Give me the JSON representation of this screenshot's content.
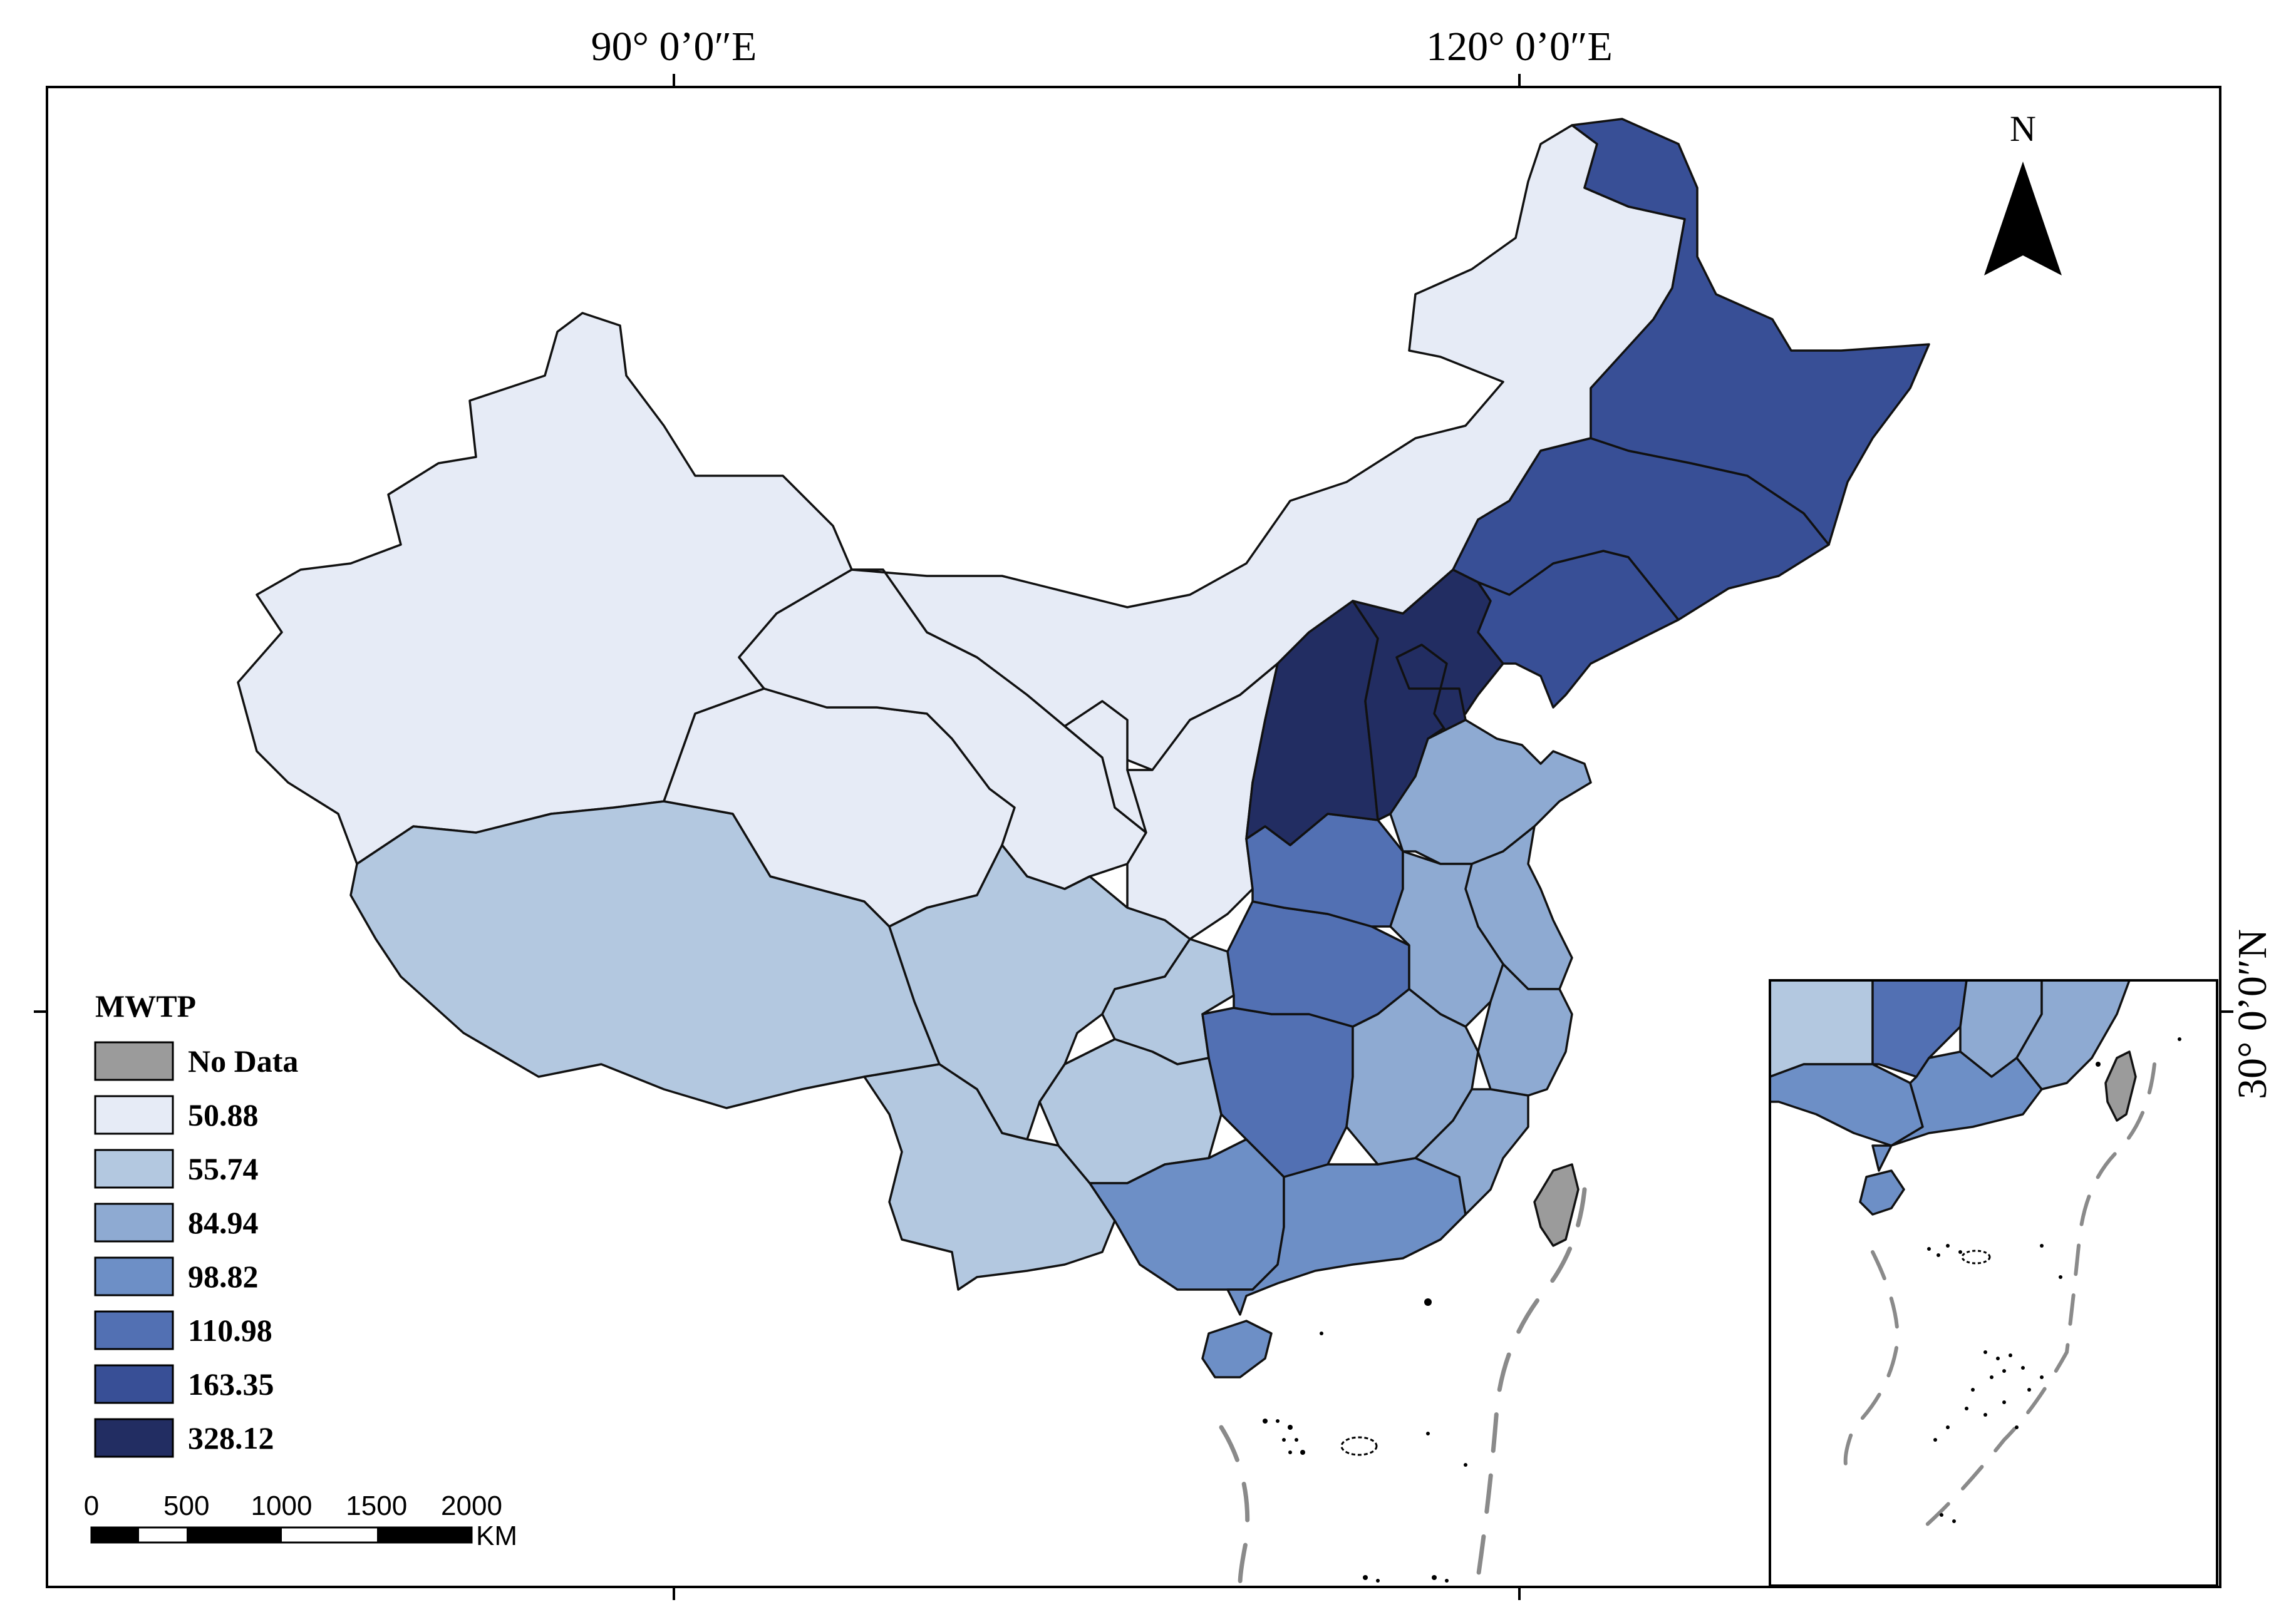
{
  "graticule": {
    "lon_labels": [
      "90°  0’0″E",
      "120°  0’0″E"
    ],
    "lat_label": "30°  0’0″N"
  },
  "north_arrow": {
    "label": "N"
  },
  "legend": {
    "title": "MWTP",
    "items": [
      {
        "label": "No Data",
        "color": "#9b9b9b"
      },
      {
        "label": "50.88",
        "color": "#e6ebf6"
      },
      {
        "label": "55.74",
        "color": "#b3c8e0"
      },
      {
        "label": "84.94",
        "color": "#8eaad2"
      },
      {
        "label": "98.82",
        "color": "#6d8fc6"
      },
      {
        "label": "110.98",
        "color": "#5270b3"
      },
      {
        "label": "163.35",
        "color": "#384f96"
      },
      {
        "label": "328.12",
        "color": "#222d62"
      }
    ]
  },
  "scale_bar": {
    "ticks": [
      "0",
      "500",
      "1000",
      "1500",
      "2000"
    ],
    "unit": "KM"
  },
  "regions_by_class": {
    "No Data": [
      "Taiwan"
    ],
    "50.88": [
      "Xinjiang",
      "Qinghai",
      "Gansu",
      "Inner Mongolia",
      "Ningxia",
      "Shaanxi"
    ],
    "55.74": [
      "Tibet",
      "Sichuan",
      "Yunnan",
      "Chongqing",
      "Guizhou"
    ],
    "84.94": [
      "Shandong",
      "Anhui",
      "Jiangsu",
      "Jiangxi",
      "Zhejiang",
      "Fujian"
    ],
    "98.82": [
      "Guangxi",
      "Guangdong",
      "Hainan"
    ],
    "110.98": [
      "Henan",
      "Hubei",
      "Hunan"
    ],
    "163.35": [
      "Heilongjiang",
      "Jilin",
      "Liaoning"
    ],
    "328.12": [
      "Shanxi",
      "Hebei",
      "Beijing",
      "Tianjin"
    ]
  }
}
